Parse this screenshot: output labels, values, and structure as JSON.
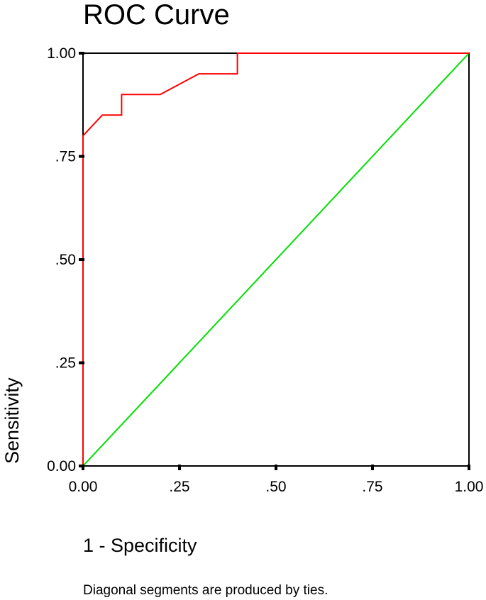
{
  "chart_data": {
    "type": "line",
    "title": "ROC Curve",
    "xlabel": "1 - Specificity",
    "ylabel": "Sensitivity",
    "xlim": [
      0,
      1
    ],
    "ylim": [
      0,
      1
    ],
    "x_ticks": [
      0,
      0.25,
      0.5,
      0.75,
      1
    ],
    "x_tick_labels": [
      "0.00",
      ".25",
      ".50",
      ".75",
      "1.00"
    ],
    "y_ticks": [
      0,
      0.25,
      0.5,
      0.75,
      1
    ],
    "y_tick_labels": [
      "0.00",
      ".25",
      ".50",
      ".75",
      "1.00"
    ],
    "grid": false,
    "footnote": "Diagonal segments are produced by ties.",
    "series": [
      {
        "color": "#ff0000",
        "x": [
          0,
          0,
          0.05,
          0.1,
          0.1,
          0.2,
          0.3,
          0.4,
          0.4,
          1.0
        ],
        "y": [
          0,
          0.8,
          0.85,
          0.85,
          0.9,
          0.9,
          0.95,
          0.95,
          1.0,
          1.0
        ]
      },
      {
        "color": "#00e000",
        "x": [
          0,
          1
        ],
        "y": [
          0,
          1
        ]
      }
    ]
  }
}
